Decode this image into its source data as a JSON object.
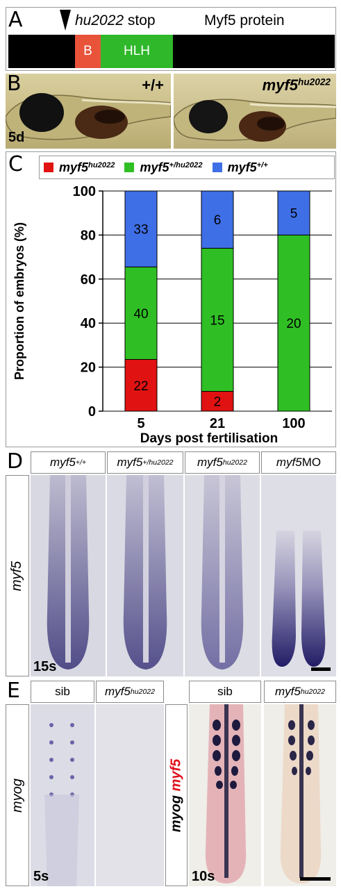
{
  "panel_a": {
    "letter": "A",
    "allele": "hu2022",
    "stop": "stop",
    "protein": "Myf5 protein",
    "domain_b": "B",
    "domain_hlh": "HLH",
    "colors": {
      "bar": "#000000",
      "basic": "#e8533a",
      "hlh": "#2fb82a"
    }
  },
  "panel_b": {
    "letter": "B",
    "wt_label": "+/+",
    "mut_gene": "myf5",
    "mut_allele": "hu2022",
    "stage": "5d"
  },
  "panel_c": {
    "letter": "C",
    "legend": [
      {
        "gene": "myf5",
        "genotype": "hu2022",
        "color": "#e01212"
      },
      {
        "gene": "myf5",
        "genotype": "+/hu2022",
        "color": "#2fbf24"
      },
      {
        "gene": "myf5",
        "genotype": "+/+",
        "color": "#3f6fe6"
      }
    ]
  },
  "chart_data": {
    "type": "bar",
    "stacked": true,
    "categories": [
      "5",
      "21",
      "100"
    ],
    "series": [
      {
        "name": "myf5 hu2022",
        "values": [
          23.5,
          9.0,
          0
        ],
        "labels": [
          "22",
          "2",
          "0"
        ],
        "color": "#e01212"
      },
      {
        "name": "myf5 +/hu2022",
        "values": [
          42.0,
          65.0,
          80.0
        ],
        "labels": [
          "40",
          "15",
          "20"
        ],
        "color": "#2fbf24"
      },
      {
        "name": "myf5 +/+",
        "values": [
          34.5,
          26.0,
          20.0
        ],
        "labels": [
          "33",
          "6",
          "5"
        ],
        "color": "#3f6fe6"
      }
    ],
    "xlabel": "Days post fertilisation",
    "ylabel": "Proportion of embryos (%)",
    "ylim": [
      0,
      100
    ],
    "yticks": [
      "0",
      "20",
      "40",
      "60",
      "80",
      "100"
    ],
    "grid": true
  },
  "panel_d": {
    "letter": "D",
    "headers": [
      {
        "gene": "myf5",
        "sup": "+/+"
      },
      {
        "gene": "myf5",
        "sup": "+/hu2022"
      },
      {
        "gene": "myf5",
        "sup": "hu2022"
      },
      {
        "gene": "myf5",
        "sup": "",
        "suffix": " MO"
      }
    ],
    "probe": "myf5",
    "stage": "15s"
  },
  "panel_e": {
    "letter": "E",
    "headers": [
      "sib",
      "myf5",
      "sib",
      "myf5"
    ],
    "header_sup": "hu2022",
    "probe_left": "myog",
    "probe_right_a": "myog",
    "probe_right_b": "myf5",
    "stage_left": "5s",
    "stage_right": "10s",
    "probe_right_b_color": "#e0101a"
  }
}
